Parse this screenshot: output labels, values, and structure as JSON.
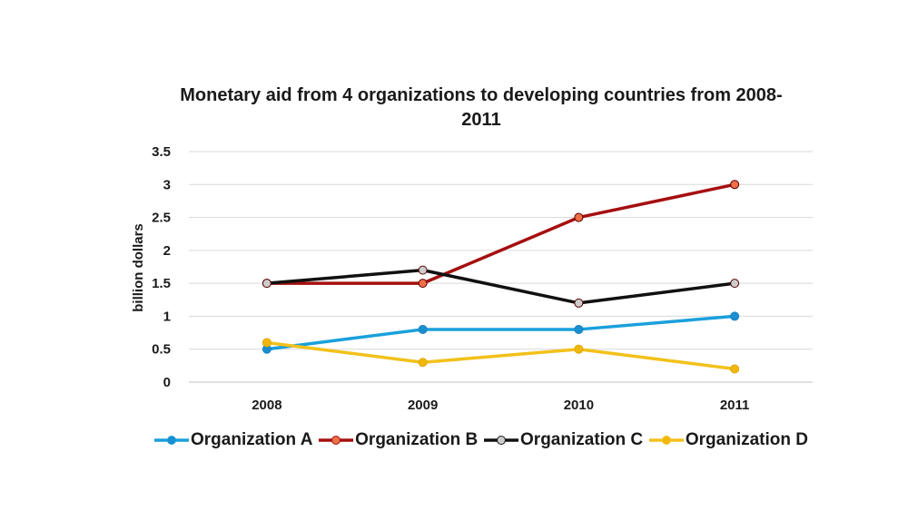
{
  "chart_data": {
    "type": "line",
    "title": "Monetary aid from 4 organizations to developing countries from 2008-2011",
    "title_line1": "Monetary aid from 4 organizations to developing countries from 2008-",
    "title_line2": "2011",
    "xlabel": "",
    "ylabel": "billion dollars",
    "categories": [
      "2008",
      "2009",
      "2010",
      "2011"
    ],
    "ylim": [
      0,
      3.5
    ],
    "yticks": [
      "0",
      "0.5",
      "1",
      "1.5",
      "2",
      "2.5",
      "3",
      "3.5"
    ],
    "ytick_values": [
      0,
      0.5,
      1,
      1.5,
      2,
      2.5,
      3,
      3.5
    ],
    "grid": true,
    "legend_position": "bottom",
    "series": [
      {
        "name": "Organization A",
        "values": [
          0.5,
          0.8,
          0.8,
          1.0
        ],
        "color": "#1aa0dc",
        "marker_fill": "#1a8fd0"
      },
      {
        "name": "Organization B",
        "values": [
          1.5,
          1.5,
          2.5,
          3.0
        ],
        "color": "#a50f0f",
        "marker_fill": "#ef6f48"
      },
      {
        "name": "Organization C",
        "values": [
          1.5,
          1.7,
          1.2,
          1.5
        ],
        "color": "#111111",
        "marker_fill": "#cccccc"
      },
      {
        "name": "Organization D",
        "values": [
          0.6,
          0.3,
          0.5,
          0.2
        ],
        "color": "#f2c11b",
        "marker_fill": "#f2b70c"
      }
    ]
  }
}
